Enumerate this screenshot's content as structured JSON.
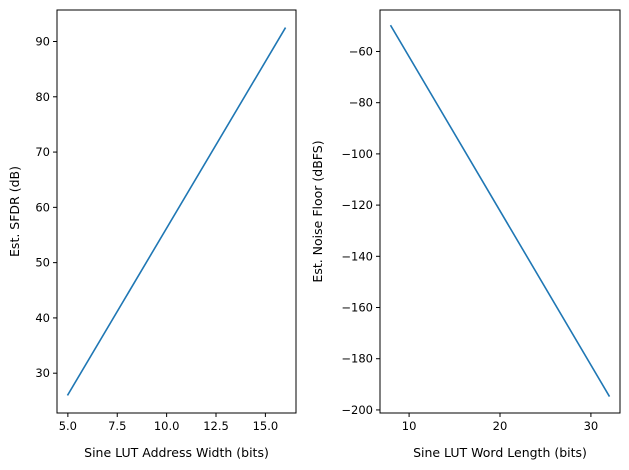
{
  "colors": {
    "line": "#1f77b4",
    "axes": "#000000",
    "background": "#ffffff"
  },
  "chart_data": [
    {
      "type": "line",
      "xlabel": "Sine LUT Address Width (bits)",
      "ylabel": "Est. SFDR (dB)",
      "xlim": [
        4.45,
        16.55
      ],
      "ylim": [
        22.8,
        95.7
      ],
      "x_ticks": [
        5,
        7.5,
        10,
        12.5,
        15
      ],
      "x_tick_labels": [
        "5.0",
        "7.5",
        "10.0",
        "12.5",
        "15.0"
      ],
      "y_ticks": [
        30,
        40,
        50,
        60,
        70,
        80,
        90
      ],
      "y_tick_labels": [
        "30",
        "40",
        "50",
        "60",
        "70",
        "80",
        "90"
      ],
      "grid": false,
      "series": [
        {
          "x": [
            5,
            16
          ],
          "values": [
            26.1,
            92.4
          ]
        }
      ]
    },
    {
      "type": "line",
      "xlabel": "Sine LUT Word Length (bits)",
      "ylabel": "Est. Noise Floor (dBFS)",
      "xlim": [
        6.8,
        33.2
      ],
      "ylim": [
        -201.2,
        -43.8
      ],
      "x_ticks": [
        10,
        20,
        30
      ],
      "x_tick_labels": [
        "10",
        "20",
        "30"
      ],
      "y_ticks": [
        -60,
        -80,
        -100,
        -120,
        -140,
        -160,
        -180,
        -200
      ],
      "y_tick_labels": [
        "−60",
        "−80",
        "−100",
        "−120",
        "−140",
        "−160",
        "−180",
        "−200"
      ],
      "grid": false,
      "series": [
        {
          "x": [
            8,
            32
          ],
          "values": [
            -50.0,
            -194.5
          ]
        }
      ]
    }
  ]
}
